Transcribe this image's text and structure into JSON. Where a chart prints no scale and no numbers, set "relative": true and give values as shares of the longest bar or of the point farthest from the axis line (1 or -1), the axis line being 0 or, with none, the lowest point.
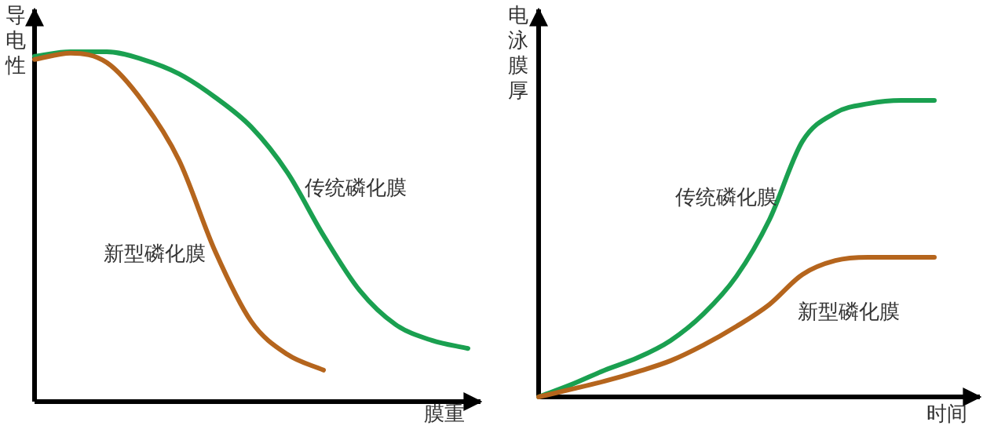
{
  "chart_data": [
    {
      "type": "line",
      "relative": true,
      "xlabel": "膜重",
      "ylabel": "导电性",
      "grid": false,
      "marker": "none",
      "line_style": "solid",
      "categories": [
        null,
        null,
        null,
        null,
        null,
        null,
        null,
        null,
        null,
        null,
        null,
        null,
        null
      ],
      "series": [
        {
          "name": "传统磷化膜",
          "color": "#1aa050",
          "values": [
            0.987,
            1,
            1,
            0.978,
            0.937,
            0.87,
            0.785,
            0.655,
            0.475,
            0.318,
            0.22,
            0.175,
            0.152
          ]
        },
        {
          "name": "新型磷化膜",
          "color": "#b5651d",
          "values": [
            0.978,
            0.996,
            0.969,
            0.857,
            0.69,
            0.43,
            0.229,
            0.135,
            0.09,
            null,
            null,
            null,
            null
          ]
        }
      ]
    },
    {
      "type": "line",
      "relative": true,
      "xlabel": "时间",
      "ylabel": "电泳膜厚",
      "grid": false,
      "marker": "none",
      "line_style": "solid",
      "categories": [
        null,
        null,
        null,
        null,
        null,
        null,
        null,
        null,
        null,
        null,
        null,
        null,
        null
      ],
      "series": [
        {
          "name": "传统磷化膜",
          "color": "#1aa050",
          "values": [
            0,
            0.042,
            0.09,
            0.132,
            0.19,
            0.28,
            0.407,
            0.598,
            0.862,
            0.958,
            0.989,
            1,
            1
          ]
        },
        {
          "name": "新型磷化膜",
          "color": "#b5651d",
          "values": [
            0,
            0.026,
            0.053,
            0.085,
            0.122,
            0.175,
            0.238,
            0.312,
            0.413,
            0.46,
            0.471,
            0.471,
            0.471
          ]
        }
      ]
    }
  ]
}
